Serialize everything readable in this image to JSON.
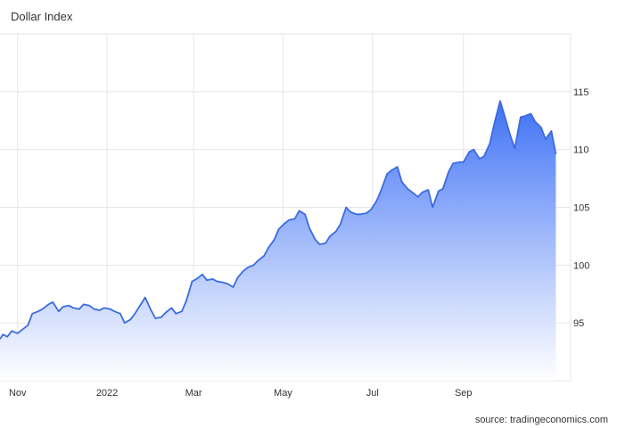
{
  "chart_data": {
    "type": "area",
    "title": "Dollar Index",
    "source": "source: tradingeconomics.com",
    "xlabel": "",
    "ylabel": "",
    "ylim": [
      90,
      120
    ],
    "y_ticks": [
      95,
      100,
      105,
      110,
      115
    ],
    "x_ticks": [
      {
        "date": "2021-11-01",
        "label": "Nov"
      },
      {
        "date": "2022-01-01",
        "label": "2022"
      },
      {
        "date": "2022-03-01",
        "label": "Mar"
      },
      {
        "date": "2022-05-01",
        "label": "May"
      },
      {
        "date": "2022-07-01",
        "label": "Jul"
      },
      {
        "date": "2022-09-01",
        "label": "Sep"
      }
    ],
    "grid": true,
    "colors": {
      "line": "#3b6be0",
      "fill_top": "#3a6ef5",
      "fill_bottom": "#ffffff",
      "grid": "#e6e6e6"
    },
    "series": [
      {
        "x": [
          "2021-10-20",
          "2021-10-22",
          "2021-10-25",
          "2021-10-28",
          "2021-11-01",
          "2021-11-04",
          "2021-11-08",
          "2021-11-11",
          "2021-11-15",
          "2021-11-18",
          "2021-11-22",
          "2021-11-25",
          "2021-11-29",
          "2021-12-02",
          "2021-12-06",
          "2021-12-09",
          "2021-12-13",
          "2021-12-16",
          "2021-12-20",
          "2021-12-23",
          "2021-12-27",
          "2021-12-30",
          "2022-01-03",
          "2022-01-06",
          "2022-01-10",
          "2022-01-13",
          "2022-01-17",
          "2022-01-20",
          "2022-01-24",
          "2022-01-27",
          "2022-01-31",
          "2022-02-03",
          "2022-02-07",
          "2022-02-10",
          "2022-02-14",
          "2022-02-17",
          "2022-02-21",
          "2022-02-24",
          "2022-02-28",
          "2022-03-03",
          "2022-03-07",
          "2022-03-10",
          "2022-03-14",
          "2022-03-17",
          "2022-03-21",
          "2022-03-24",
          "2022-03-28",
          "2022-03-31",
          "2022-04-04",
          "2022-04-07",
          "2022-04-11",
          "2022-04-14",
          "2022-04-18",
          "2022-04-21",
          "2022-04-25",
          "2022-04-28",
          "2022-05-02",
          "2022-05-05",
          "2022-05-09",
          "2022-05-12",
          "2022-05-16",
          "2022-05-19",
          "2022-05-23",
          "2022-05-26",
          "2022-05-30",
          "2022-06-02",
          "2022-06-06",
          "2022-06-09",
          "2022-06-13",
          "2022-06-16",
          "2022-06-20",
          "2022-06-23",
          "2022-06-27",
          "2022-06-30",
          "2022-07-04",
          "2022-07-07",
          "2022-07-11",
          "2022-07-14",
          "2022-07-18",
          "2022-07-21",
          "2022-07-25",
          "2022-07-28",
          "2022-08-01",
          "2022-08-04",
          "2022-08-08",
          "2022-08-11",
          "2022-08-15",
          "2022-08-18",
          "2022-08-22",
          "2022-08-25",
          "2022-08-29",
          "2022-09-01",
          "2022-09-05",
          "2022-09-08",
          "2022-09-12",
          "2022-09-15",
          "2022-09-19",
          "2022-09-22",
          "2022-09-26",
          "2022-09-28",
          "2022-10-03",
          "2022-10-06",
          "2022-10-10",
          "2022-10-13",
          "2022-10-17",
          "2022-10-20",
          "2022-10-24",
          "2022-10-27",
          "2022-10-31",
          "2022-11-03"
        ],
        "values": [
          93.6,
          94.0,
          93.8,
          94.3,
          94.1,
          94.4,
          94.8,
          95.8,
          96.0,
          96.2,
          96.6,
          96.8,
          96.0,
          96.4,
          96.5,
          96.3,
          96.2,
          96.6,
          96.5,
          96.2,
          96.1,
          96.3,
          96.2,
          96.0,
          95.8,
          95.0,
          95.3,
          95.8,
          96.6,
          97.2,
          96.1,
          95.4,
          95.5,
          95.9,
          96.3,
          95.8,
          96.0,
          96.9,
          98.6,
          98.8,
          99.2,
          98.7,
          98.8,
          98.6,
          98.5,
          98.4,
          98.1,
          98.9,
          99.5,
          99.8,
          100.0,
          100.4,
          100.8,
          101.5,
          102.2,
          103.1,
          103.6,
          103.9,
          104.0,
          104.7,
          104.4,
          103.2,
          102.2,
          101.8,
          101.9,
          102.5,
          102.9,
          103.5,
          105.0,
          104.6,
          104.4,
          104.4,
          104.5,
          104.8,
          105.6,
          106.5,
          107.9,
          108.2,
          108.5,
          107.2,
          106.6,
          106.3,
          105.9,
          106.3,
          106.5,
          105.0,
          106.4,
          106.6,
          108.1,
          108.8,
          108.9,
          108.9,
          109.8,
          110.0,
          109.2,
          109.4,
          110.5,
          112.2,
          114.2,
          113.4,
          111.2,
          110.1,
          112.8,
          112.9,
          113.1,
          112.4,
          111.9,
          110.9,
          111.6,
          109.6
        ]
      }
    ]
  }
}
